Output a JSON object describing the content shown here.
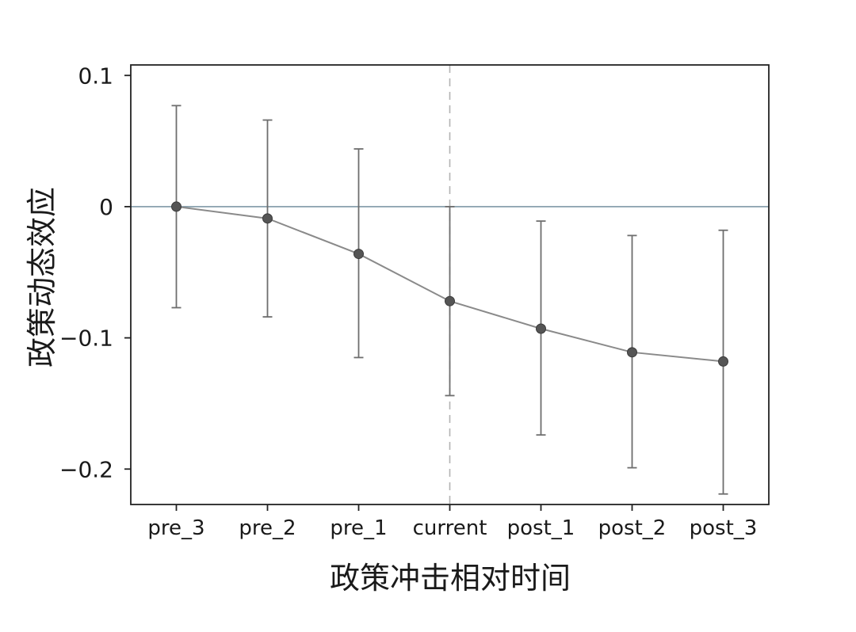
{
  "chart_data": {
    "type": "scatter",
    "title": "",
    "xlabel": "政策冲击相对时间",
    "ylabel": "政策动态效应",
    "categories": [
      "pre_3",
      "pre_2",
      "pre_1",
      "current",
      "post_1",
      "post_2",
      "post_3"
    ],
    "series": [
      {
        "values": [
          0.0,
          -0.009,
          -0.036,
          -0.072,
          -0.093,
          -0.111,
          -0.118
        ],
        "ci_upper": [
          0.077,
          0.066,
          0.044,
          0.0,
          -0.011,
          -0.022,
          -0.018
        ],
        "ci_lower": [
          -0.077,
          -0.084,
          -0.115,
          -0.144,
          -0.174,
          -0.199,
          -0.219
        ]
      }
    ],
    "yticks": [
      0.1,
      0,
      -0.1,
      -0.2
    ],
    "ytick_labels": [
      "0.1",
      "0",
      "−0.1",
      "−0.2"
    ],
    "ylim": [
      -0.227,
      0.108
    ],
    "reference_hline": 0,
    "reference_vline_category": "current",
    "grid": false,
    "legend": "none",
    "colors": {
      "marker": "#555555",
      "line": "#8a8a8a",
      "error_bar": "#6e6e6e",
      "zero_line": "#7f98a6",
      "vline": "#b3b3b3",
      "frame": "#222222"
    }
  }
}
